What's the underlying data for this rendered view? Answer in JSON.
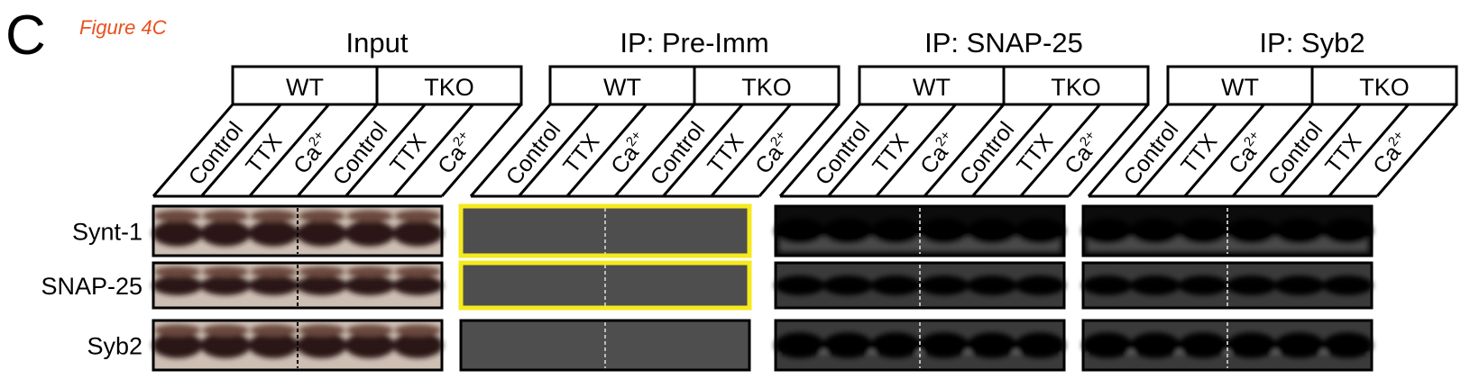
{
  "panel": {
    "letter": "C",
    "figure_label": "Figure 4C"
  },
  "groups": [
    {
      "title": "Input"
    },
    {
      "title": "IP: Pre-Imm"
    },
    {
      "title": "IP: SNAP-25"
    },
    {
      "title": "IP: Syb2"
    }
  ],
  "genotypes": [
    "WT",
    "TKO"
  ],
  "conditions": [
    {
      "text": "Control"
    },
    {
      "text": "TTX"
    },
    {
      "text": "Ca",
      "superscript": "2+"
    }
  ],
  "rows": [
    "Synt-1",
    "SNAP-25",
    "Syb2"
  ]
}
